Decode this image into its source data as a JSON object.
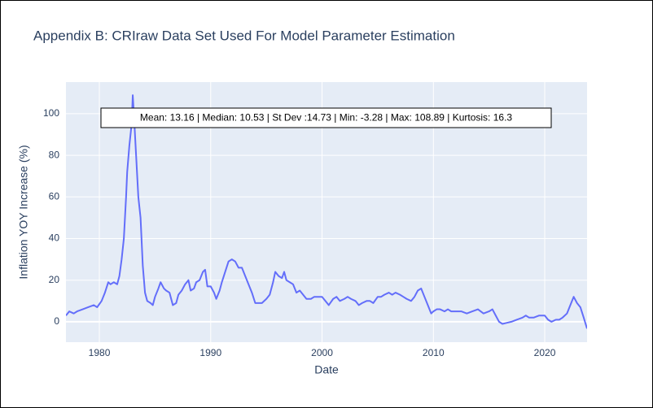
{
  "chart_data": {
    "type": "line",
    "title": "Appendix B: CRIraw Data Set Used For Model Parameter Estimation",
    "x_label": "Date",
    "y_label": "Inflation YOY Increase (%)",
    "annotation": "Mean: 13.16 | Median: 10.53 | St Dev :14.73 | Min: -3.28 | Max: 108.89 | Kurtosis: 16.3",
    "xlim": [
      1977,
      2023.8
    ],
    "ylim": [
      -9.8,
      115.2
    ],
    "xticks": [
      1980,
      1990,
      2000,
      2010,
      2020
    ],
    "yticks": [
      0,
      20,
      40,
      60,
      80,
      100
    ],
    "grid": true,
    "x": [
      1977.0,
      1977.3,
      1977.7,
      1978.0,
      1978.5,
      1979.0,
      1979.5,
      1979.8,
      1980.2,
      1980.5,
      1980.8,
      1981.0,
      1981.3,
      1981.6,
      1981.8,
      1982.0,
      1982.2,
      1982.4,
      1982.5,
      1982.7,
      1982.9,
      1983.0,
      1983.1,
      1983.3,
      1983.5,
      1983.7,
      1983.9,
      1984.1,
      1984.3,
      1984.6,
      1984.8,
      1985.0,
      1985.3,
      1985.5,
      1985.8,
      1986.0,
      1986.3,
      1986.6,
      1986.9,
      1987.1,
      1987.4,
      1987.7,
      1988.0,
      1988.2,
      1988.5,
      1988.7,
      1989.0,
      1989.3,
      1989.5,
      1989.7,
      1990.0,
      1990.3,
      1990.5,
      1990.8,
      1991.0,
      1991.3,
      1991.6,
      1991.9,
      1992.2,
      1992.5,
      1992.8,
      1993.1,
      1993.4,
      1993.7,
      1994.0,
      1994.3,
      1994.6,
      1995.0,
      1995.3,
      1995.6,
      1995.8,
      1996.1,
      1996.4,
      1996.6,
      1996.8,
      1997.1,
      1997.4,
      1997.7,
      1998.0,
      1998.3,
      1998.6,
      1999.0,
      1999.3,
      1999.6,
      2000.0,
      2000.3,
      2000.6,
      2001.0,
      2001.3,
      2001.6,
      2002.0,
      2002.3,
      2002.6,
      2003.0,
      2003.3,
      2003.6,
      2004.0,
      2004.3,
      2004.6,
      2005.0,
      2005.3,
      2005.6,
      2006.0,
      2006.3,
      2006.6,
      2007.0,
      2007.3,
      2007.6,
      2008.0,
      2008.3,
      2008.6,
      2008.9,
      2009.2,
      2009.5,
      2009.8,
      2010.0,
      2010.3,
      2010.6,
      2011.0,
      2011.3,
      2011.6,
      2012.0,
      2012.5,
      2013.0,
      2013.5,
      2014.0,
      2014.5,
      2015.0,
      2015.3,
      2015.6,
      2015.9,
      2016.2,
      2016.6,
      2017.0,
      2017.5,
      2018.0,
      2018.3,
      2018.6,
      2019.0,
      2019.5,
      2020.0,
      2020.3,
      2020.6,
      2021.0,
      2021.3,
      2021.6,
      2022.0,
      2022.3,
      2022.6,
      2022.9,
      2023.2,
      2023.5,
      2023.8
    ],
    "series": [
      {
        "color": "#636efa",
        "values": [
          3,
          5,
          4,
          5,
          6,
          7,
          8,
          7,
          10,
          14,
          19,
          18,
          19,
          18,
          22,
          30,
          40,
          60,
          72,
          85,
          95,
          108.89,
          100,
          80,
          60,
          50,
          27,
          14,
          10,
          9,
          8,
          12,
          16,
          19,
          16,
          15,
          14,
          8,
          9,
          13,
          15,
          18,
          20,
          15,
          16,
          19,
          20,
          24,
          25,
          17,
          17,
          14,
          11,
          15,
          19,
          24,
          29,
          30,
          29,
          26,
          26,
          22,
          18,
          14,
          9,
          9,
          9,
          11,
          13,
          19,
          24,
          22,
          21,
          24,
          20,
          19,
          18,
          14,
          15,
          13,
          11,
          11,
          12,
          12,
          12,
          10,
          8,
          11,
          12,
          10,
          11,
          12,
          11,
          10,
          8,
          9,
          10,
          10,
          9,
          12,
          12,
          13,
          14,
          13,
          14,
          13,
          12,
          11,
          10,
          12,
          15,
          16,
          12,
          8,
          4,
          5,
          6,
          6,
          5,
          6,
          5,
          5,
          5,
          4,
          5,
          6,
          4,
          5,
          6,
          3,
          0,
          -1,
          -0.5,
          0,
          1,
          2,
          3,
          2,
          2,
          3,
          3,
          1,
          0,
          1,
          1,
          2,
          4,
          8,
          12,
          9,
          7,
          2,
          -3.28
        ]
      }
    ]
  }
}
